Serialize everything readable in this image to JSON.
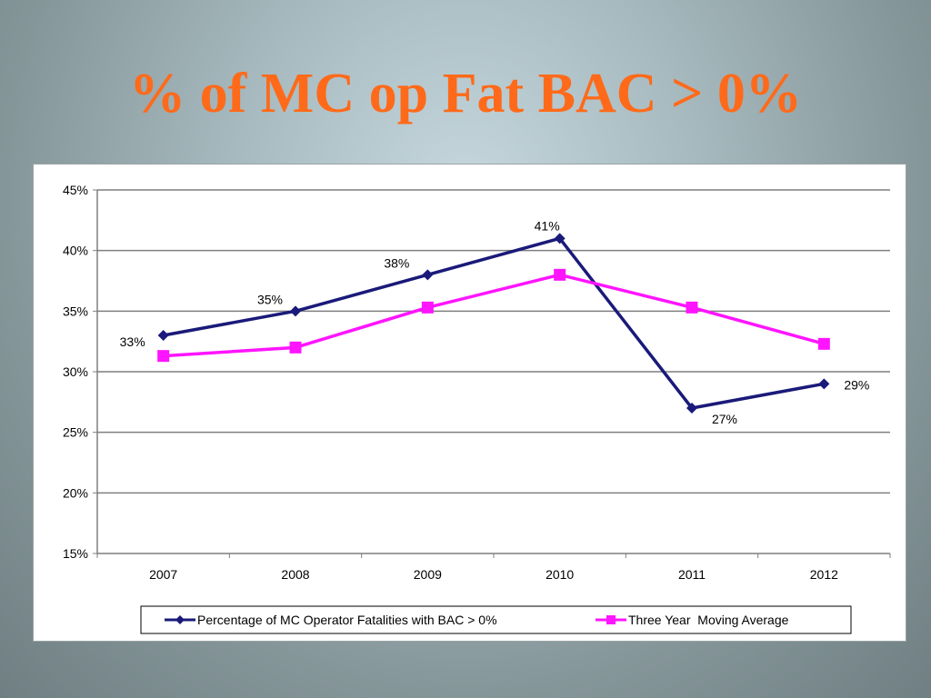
{
  "slide": {
    "title": "% of MC op Fat BAC > 0%"
  },
  "chart_data": {
    "type": "line",
    "categories": [
      "2007",
      "2008",
      "2009",
      "2010",
      "2011",
      "2012"
    ],
    "ylim": [
      0.15,
      0.45
    ],
    "yticks": [
      0.15,
      0.2,
      0.25,
      0.3,
      0.35,
      0.4,
      0.45
    ],
    "ytick_labels": [
      "15%",
      "20%",
      "25%",
      "30%",
      "35%",
      "40%",
      "45%"
    ],
    "grid": true,
    "legend_position": "bottom",
    "series": [
      {
        "name": "Percentage of MC Operator Fatalities with BAC > 0%",
        "values": [
          0.33,
          0.35,
          0.38,
          0.41,
          0.27,
          0.29
        ],
        "labels": [
          "33%",
          "35%",
          "38%",
          "41%",
          "27%",
          "29%"
        ],
        "color": "#1a1a7a",
        "marker": "diamond"
      },
      {
        "name": "Three Year  Moving Average",
        "values": [
          0.313,
          0.32,
          0.353,
          0.38,
          0.353,
          0.323
        ],
        "color": "#ff14ff",
        "marker": "square"
      }
    ]
  }
}
